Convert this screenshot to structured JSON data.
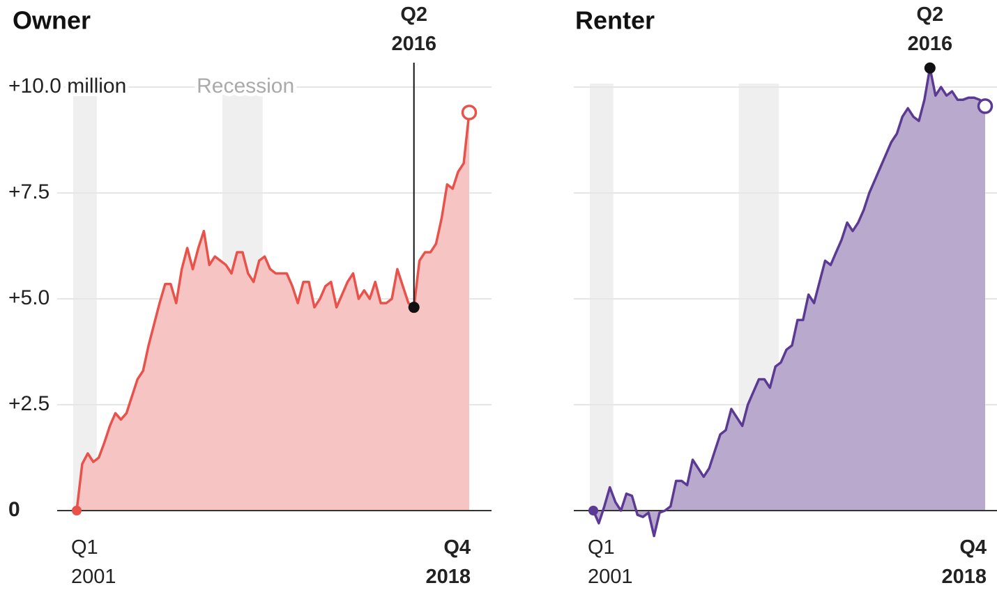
{
  "chart_data": [
    {
      "type": "area",
      "title": "Owner",
      "categories": [
        "Q1 2001",
        null,
        null,
        null,
        null,
        null,
        null,
        null,
        null,
        null,
        null,
        null,
        null,
        null,
        null,
        null,
        null,
        null,
        null,
        null,
        null,
        null,
        null,
        null,
        null,
        null,
        null,
        null,
        null,
        null,
        null,
        null,
        null,
        null,
        null,
        null,
        null,
        null,
        null,
        null,
        null,
        null,
        null,
        null,
        null,
        null,
        null,
        null,
        null,
        null,
        null,
        null,
        null,
        null,
        null,
        null,
        null,
        null,
        null,
        null,
        null,
        "Q2 2016",
        null,
        null,
        null,
        null,
        null,
        null,
        null,
        null,
        null,
        "Q4 2018"
      ],
      "values": [
        0,
        1.1,
        1.35,
        1.15,
        1.25,
        1.6,
        2.0,
        2.3,
        2.15,
        2.3,
        2.7,
        3.1,
        3.3,
        3.9,
        4.4,
        4.9,
        5.35,
        5.35,
        4.9,
        5.7,
        6.2,
        5.7,
        6.2,
        6.6,
        5.8,
        6.0,
        5.9,
        5.8,
        5.6,
        6.1,
        6.1,
        5.6,
        5.4,
        5.9,
        6.0,
        5.7,
        5.6,
        5.6,
        5.6,
        5.3,
        4.9,
        5.4,
        5.4,
        4.8,
        5.0,
        5.3,
        5.4,
        4.8,
        5.1,
        5.4,
        5.6,
        5.0,
        5.2,
        5.0,
        5.4,
        4.9,
        4.9,
        5.0,
        5.7,
        5.3,
        4.9,
        4.8,
        5.9,
        6.1,
        6.1,
        6.3,
        6.9,
        7.7,
        7.6,
        8.0,
        8.2,
        9.4
      ],
      "color": "#e8524a",
      "fill_color": "#f6c4c2",
      "ylim": [
        0,
        10
      ],
      "yticks": [
        0,
        {
          "value": 2.5,
          "label": "+2.5"
        },
        {
          "value": 5,
          "label": "+5.0"
        },
        {
          "value": 7.5,
          "label": "+7.5"
        },
        {
          "value": 10,
          "label": "+10.0 million"
        }
      ],
      "grid": true,
      "show_tick_labels": true,
      "recessions": [
        {
          "from": 0,
          "to": 3
        },
        {
          "from": 27,
          "to": 33
        }
      ],
      "recession_label": "Recession"
    },
    {
      "type": "area",
      "title": "Renter",
      "categories": [
        "Q1 2001",
        null,
        null,
        null,
        null,
        null,
        null,
        null,
        null,
        null,
        null,
        null,
        null,
        null,
        null,
        null,
        null,
        null,
        null,
        null,
        null,
        null,
        null,
        null,
        null,
        null,
        null,
        null,
        null,
        null,
        null,
        null,
        null,
        null,
        null,
        null,
        null,
        null,
        null,
        null,
        null,
        null,
        null,
        null,
        null,
        null,
        null,
        null,
        null,
        null,
        null,
        null,
        null,
        null,
        null,
        null,
        null,
        null,
        null,
        null,
        null,
        "Q2 2016",
        null,
        null,
        null,
        null,
        null,
        null,
        null,
        null,
        null,
        "Q4 2018"
      ],
      "values": [
        0,
        -0.3,
        0.1,
        0.55,
        0.2,
        0.0,
        0.4,
        0.35,
        -0.1,
        -0.15,
        -0.05,
        -0.6,
        -0.05,
        0.0,
        0.1,
        0.7,
        0.7,
        0.6,
        1.2,
        1.0,
        0.8,
        1.0,
        1.4,
        1.8,
        1.9,
        2.4,
        2.2,
        2.0,
        2.5,
        2.8,
        3.1,
        3.1,
        2.9,
        3.4,
        3.5,
        3.8,
        3.9,
        4.5,
        4.5,
        5.1,
        4.9,
        5.4,
        5.9,
        5.8,
        6.1,
        6.4,
        6.8,
        6.6,
        6.8,
        7.1,
        7.5,
        7.8,
        8.1,
        8.4,
        8.7,
        8.9,
        9.3,
        9.5,
        9.3,
        9.2,
        9.7,
        10.45,
        9.8,
        10.0,
        9.8,
        9.9,
        9.7,
        9.7,
        9.75,
        9.75,
        9.7,
        9.55
      ],
      "color": "#5b3a94",
      "fill_color": "#b9a9cc",
      "ylim": [
        0,
        10
      ],
      "yticks": [
        0,
        2.5,
        5,
        7.5,
        10
      ],
      "grid": true,
      "show_tick_labels": false,
      "recessions": [
        {
          "from": 0,
          "to": 3
        },
        {
          "from": 27,
          "to": 33
        }
      ]
    }
  ]
}
